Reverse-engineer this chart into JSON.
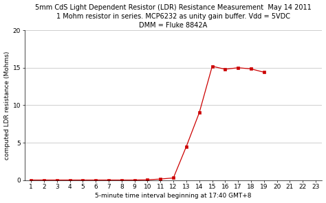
{
  "title_line1": "5mm CdS Light Dependent Resistor (LDR) Resistance Measurement  May 14 2011",
  "title_line2": "1 Mohm resistor in series. MCP6232 as unity gain buffer. Vdd = 5VDC",
  "title_line3": "DMM = Fluke 8842A",
  "xlabel": "5-minute time interval beginning at 17:40 GMT+8",
  "ylabel": "computed LDR resistance (Mohms)",
  "x": [
    1,
    2,
    3,
    4,
    5,
    6,
    7,
    8,
    9,
    10,
    11,
    12,
    13,
    14,
    15,
    16,
    17,
    18,
    19
  ],
  "y": [
    0.02,
    0.02,
    0.02,
    0.02,
    0.02,
    0.02,
    0.02,
    0.02,
    0.02,
    0.05,
    0.15,
    0.3,
    4.5,
    9.0,
    15.2,
    14.8,
    15.0,
    14.85,
    14.4
  ],
  "xlim": [
    0.5,
    23.5
  ],
  "ylim": [
    0,
    20
  ],
  "xticks": [
    1,
    2,
    3,
    4,
    5,
    6,
    7,
    8,
    9,
    10,
    11,
    12,
    13,
    14,
    15,
    16,
    17,
    18,
    19,
    20,
    21,
    22,
    23
  ],
  "yticks": [
    0,
    5,
    10,
    15,
    20
  ],
  "line_color": "#cc0000",
  "marker": "s",
  "marker_color": "#cc0000",
  "marker_size": 3,
  "background_color": "#ffffff",
  "grid_color": "#bbbbbb",
  "title_fontsize": 7.0,
  "axis_label_fontsize": 6.5,
  "tick_fontsize": 6.5
}
